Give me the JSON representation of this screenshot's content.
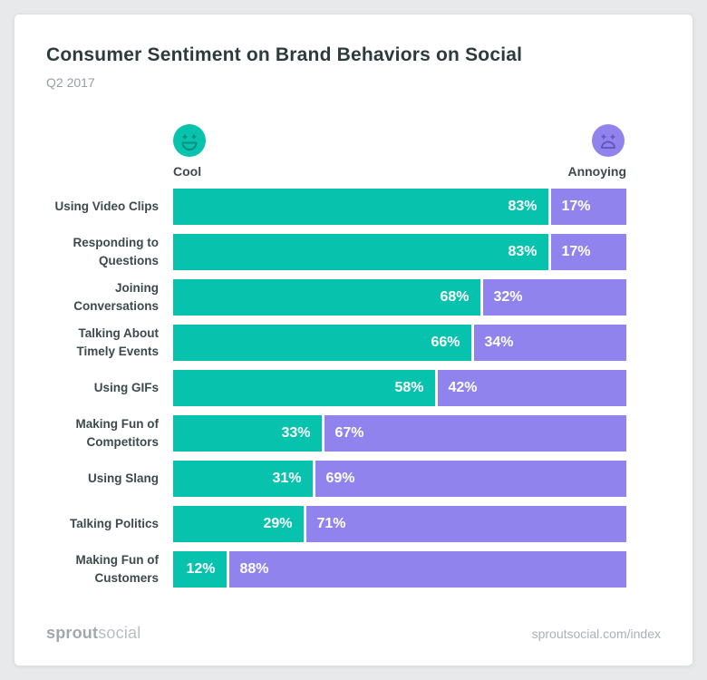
{
  "header": {
    "title": "Consumer Sentiment on Brand Behaviors on Social",
    "subtitle": "Q2 2017"
  },
  "legend": {
    "cool": {
      "label": "Cool",
      "color": "#07c3ae",
      "feature_color": "#0d8d7d"
    },
    "annoying": {
      "label": "Annoying",
      "color": "#9083ee",
      "feature_color": "#6457bd"
    }
  },
  "chart_data": {
    "type": "bar",
    "orientation": "horizontal-stacked",
    "title": "Consumer Sentiment on Brand Behaviors on Social",
    "subtitle": "Q2 2017",
    "value_format": "percent",
    "xlim": [
      0,
      100
    ],
    "grid": false,
    "legend_position": "top",
    "categories": [
      "Using Video Clips",
      "Responding to Questions",
      "Joining Conversations",
      "Talking About Timely Events",
      "Using GIFs",
      "Making Fun of Competitors",
      "Using Slang",
      "Talking Politics",
      "Making Fun of Customers"
    ],
    "series": [
      {
        "name": "Cool",
        "color": "#07c3ae",
        "values": [
          83,
          83,
          68,
          66,
          58,
          33,
          31,
          29,
          12
        ]
      },
      {
        "name": "Annoying",
        "color": "#9083ee",
        "values": [
          17,
          17,
          32,
          34,
          42,
          67,
          69,
          71,
          88
        ]
      }
    ]
  },
  "footer": {
    "logo_bold": "sprout",
    "logo_light": "social",
    "link": "sproutsocial.com/index"
  }
}
